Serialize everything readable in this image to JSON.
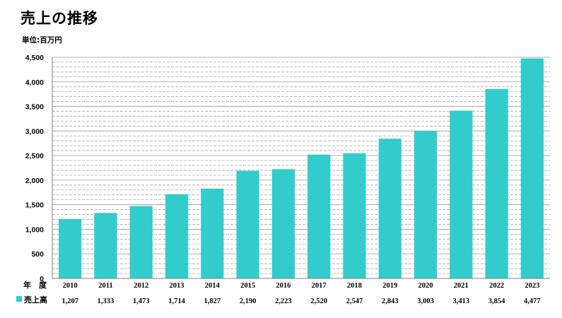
{
  "title": "売上の推移",
  "unit_label": "単位:百万円",
  "year_row_label": "年　度",
  "colors": {
    "bar": "#33cccc",
    "grid": "#9a9a9a",
    "axis": "#7f7f7f"
  },
  "chart_data": {
    "type": "bar",
    "title": "売上の推移",
    "xlabel": "年　度",
    "ylabel": "単位:百万円",
    "categories": [
      "2010",
      "2011",
      "2012",
      "2013",
      "2014",
      "2015",
      "2016",
      "2017",
      "2018",
      "2019",
      "2020",
      "2021",
      "2022",
      "2023"
    ],
    "series": [
      {
        "name": "売上高",
        "values": [
          1207,
          1333,
          1473,
          1714,
          1827,
          2190,
          2223,
          2520,
          2547,
          2843,
          3003,
          3413,
          3854,
          4477
        ]
      }
    ],
    "value_labels": [
      "1,207",
      "1,333",
      "1,473",
      "1,714",
      "1,827",
      "2,190",
      "2,223",
      "2,520",
      "2,547",
      "2,843",
      "3,003",
      "3,413",
      "3,854",
      "4,477"
    ],
    "ylim": [
      0,
      4500
    ],
    "yticks": [
      0,
      500,
      1000,
      1500,
      2000,
      2500,
      3000,
      3500,
      4000,
      4500
    ],
    "ytick_labels": [
      "0",
      "500",
      "1,000",
      "1,500",
      "2,000",
      "2,500",
      "3,000",
      "3,500",
      "4,000",
      "4,500"
    ],
    "grid": true,
    "legend": "data-table-below"
  }
}
